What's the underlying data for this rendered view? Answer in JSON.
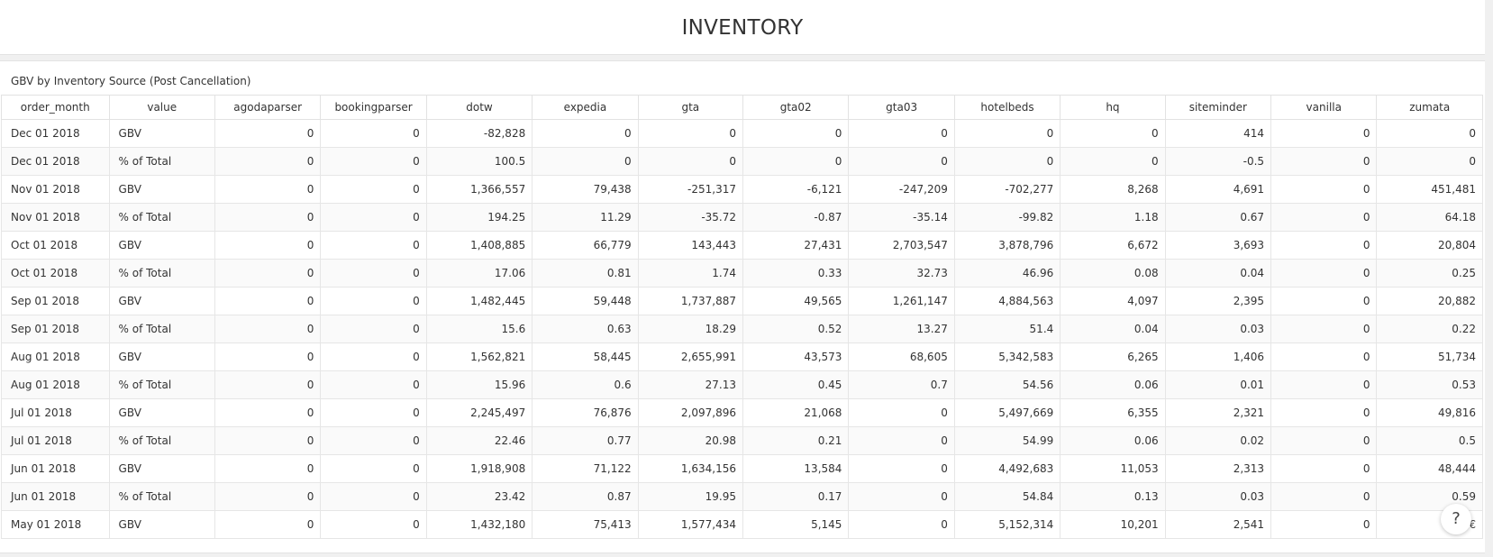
{
  "page": {
    "title": "INVENTORY"
  },
  "panel": {
    "title": "GBV by Inventory Source (Post Cancellation)"
  },
  "table": {
    "columns": [
      "order_month",
      "value",
      "agodaparser",
      "bookingparser",
      "dotw",
      "expedia",
      "gta",
      "gta02",
      "gta03",
      "hotelbeds",
      "hq",
      "siteminder",
      "vanilla",
      "zumata"
    ],
    "rows": [
      [
        "Dec 01 2018",
        "GBV",
        "0",
        "0",
        "-82,828",
        "0",
        "0",
        "0",
        "0",
        "0",
        "0",
        "414",
        "0",
        "0"
      ],
      [
        "Dec 01 2018",
        "% of Total",
        "0",
        "0",
        "100.5",
        "0",
        "0",
        "0",
        "0",
        "0",
        "0",
        "-0.5",
        "0",
        "0"
      ],
      [
        "Nov 01 2018",
        "GBV",
        "0",
        "0",
        "1,366,557",
        "79,438",
        "-251,317",
        "-6,121",
        "-247,209",
        "-702,277",
        "8,268",
        "4,691",
        "0",
        "451,481"
      ],
      [
        "Nov 01 2018",
        "% of Total",
        "0",
        "0",
        "194.25",
        "11.29",
        "-35.72",
        "-0.87",
        "-35.14",
        "-99.82",
        "1.18",
        "0.67",
        "0",
        "64.18"
      ],
      [
        "Oct 01 2018",
        "GBV",
        "0",
        "0",
        "1,408,885",
        "66,779",
        "143,443",
        "27,431",
        "2,703,547",
        "3,878,796",
        "6,672",
        "3,693",
        "0",
        "20,804"
      ],
      [
        "Oct 01 2018",
        "% of Total",
        "0",
        "0",
        "17.06",
        "0.81",
        "1.74",
        "0.33",
        "32.73",
        "46.96",
        "0.08",
        "0.04",
        "0",
        "0.25"
      ],
      [
        "Sep 01 2018",
        "GBV",
        "0",
        "0",
        "1,482,445",
        "59,448",
        "1,737,887",
        "49,565",
        "1,261,147",
        "4,884,563",
        "4,097",
        "2,395",
        "0",
        "20,882"
      ],
      [
        "Sep 01 2018",
        "% of Total",
        "0",
        "0",
        "15.6",
        "0.63",
        "18.29",
        "0.52",
        "13.27",
        "51.4",
        "0.04",
        "0.03",
        "0",
        "0.22"
      ],
      [
        "Aug 01 2018",
        "GBV",
        "0",
        "0",
        "1,562,821",
        "58,445",
        "2,655,991",
        "43,573",
        "68,605",
        "5,342,583",
        "6,265",
        "1,406",
        "0",
        "51,734"
      ],
      [
        "Aug 01 2018",
        "% of Total",
        "0",
        "0",
        "15.96",
        "0.6",
        "27.13",
        "0.45",
        "0.7",
        "54.56",
        "0.06",
        "0.01",
        "0",
        "0.53"
      ],
      [
        "Jul 01 2018",
        "GBV",
        "0",
        "0",
        "2,245,497",
        "76,876",
        "2,097,896",
        "21,068",
        "0",
        "5,497,669",
        "6,355",
        "2,321",
        "0",
        "49,816"
      ],
      [
        "Jul 01 2018",
        "% of Total",
        "0",
        "0",
        "22.46",
        "0.77",
        "20.98",
        "0.21",
        "0",
        "54.99",
        "0.06",
        "0.02",
        "0",
        "0.5"
      ],
      [
        "Jun 01 2018",
        "GBV",
        "0",
        "0",
        "1,918,908",
        "71,122",
        "1,634,156",
        "13,584",
        "0",
        "4,492,683",
        "11,053",
        "2,313",
        "0",
        "48,444"
      ],
      [
        "Jun 01 2018",
        "% of Total",
        "0",
        "0",
        "23.42",
        "0.87",
        "19.95",
        "0.17",
        "0",
        "54.84",
        "0.13",
        "0.03",
        "0",
        "0.59"
      ],
      [
        "May 01 2018",
        "GBV",
        "0",
        "0",
        "1,432,180",
        "75,413",
        "1,577,434",
        "5,145",
        "0",
        "5,152,314",
        "10,201",
        "2,541",
        "0",
        "€"
      ]
    ]
  },
  "help": {
    "label": "?"
  }
}
